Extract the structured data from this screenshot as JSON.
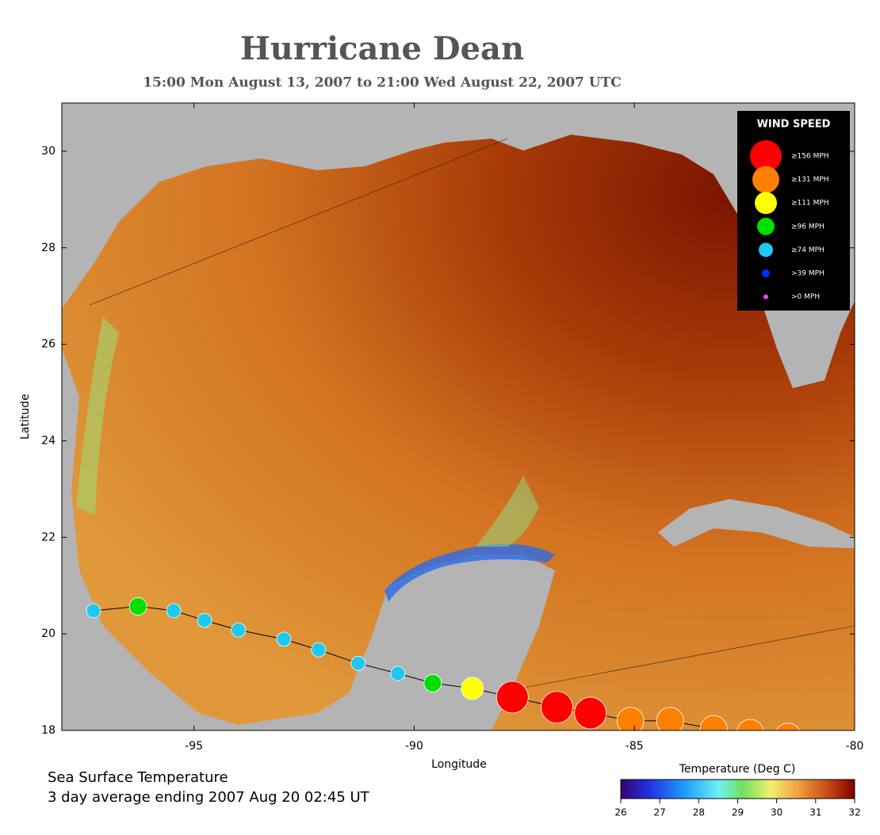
{
  "chart_data": {
    "type": "scatter",
    "title": "Hurricane Dean",
    "subtitle": "15:00 Mon August 13, 2007 to 21:00 Wed August 22, 2007  UTC",
    "xlabel": "Longitude",
    "ylabel": "Latitude",
    "xlim": [
      -98,
      -80
    ],
    "ylim": [
      18,
      31
    ],
    "xticks": [
      -95,
      -90,
      -85,
      -80
    ],
    "yticks": [
      18,
      20,
      22,
      24,
      26,
      28,
      30
    ],
    "x": [
      -97.28,
      -96.27,
      -95.46,
      -94.76,
      -93.99,
      -92.96,
      -92.17,
      -91.27,
      -90.37,
      -89.58,
      -88.68,
      -87.77,
      -86.76,
      -86.0,
      -85.09,
      -84.19,
      -83.2,
      -82.37,
      -81.51
    ],
    "values": [
      20.48,
      20.57,
      20.48,
      20.28,
      20.08,
      19.89,
      19.67,
      19.39,
      19.18,
      18.98,
      18.87,
      18.69,
      18.48,
      18.36,
      18.2,
      18.2,
      18.03,
      17.95,
      17.87
    ],
    "point_category": [
      4,
      3,
      4,
      4,
      4,
      4,
      4,
      4,
      4,
      3,
      2,
      0,
      0,
      0,
      1,
      1,
      1,
      1,
      1
    ],
    "track_color": "#000000",
    "legend": {
      "title": "WIND SPEED",
      "position": "upper right",
      "entries": [
        {
          "label": "≥156 MPH",
          "color": "#ff0000"
        },
        {
          "label": "≥131 MPH",
          "color": "#ff7f00"
        },
        {
          "label": "≥111 MPH",
          "color": "#ffff00"
        },
        {
          "label": "≥96 MPH",
          "color": "#00e000"
        },
        {
          "label": "≥74 MPH",
          "color": "#1ec8f0"
        },
        {
          "label": ">39 MPH",
          "color": "#0030ff"
        },
        {
          "label": ">0 MPH",
          "color": "#ff40ff"
        }
      ]
    },
    "colorbar": {
      "title": "Temperature (Deg C)",
      "lim": [
        26,
        32
      ],
      "ticks": [
        26,
        27,
        28,
        29,
        30,
        31,
        32
      ]
    },
    "caption": [
      "Sea Surface Temperature",
      "3 day average ending 2007 Aug 20 02:45 UT"
    ]
  }
}
